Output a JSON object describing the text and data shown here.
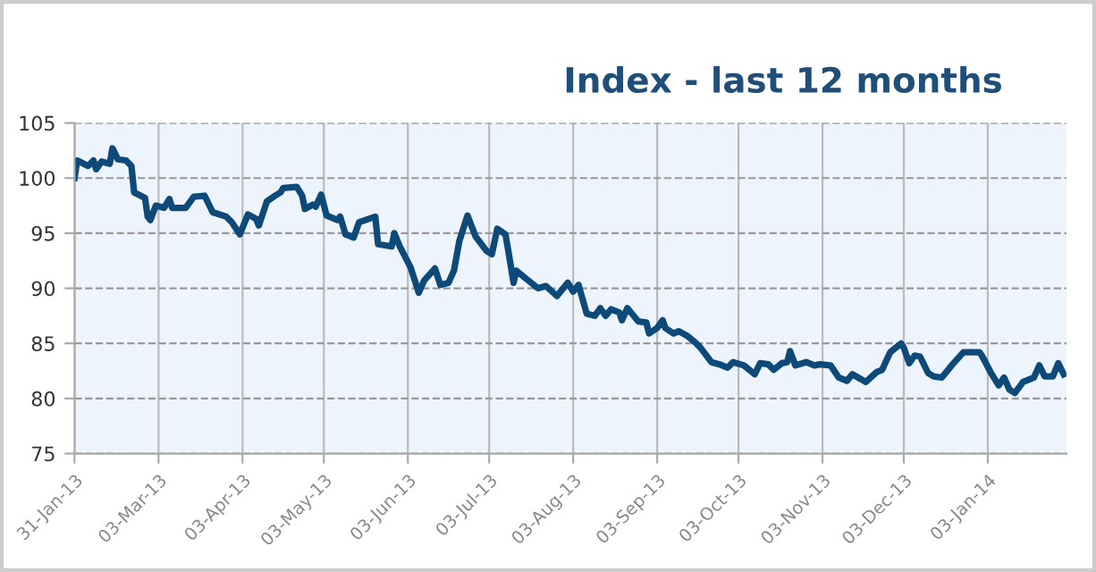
{
  "chart_data": {
    "type": "line",
    "title": "Index - last 12 months",
    "x": [
      "2013-01-31",
      "2013-02-01",
      "2013-02-05",
      "2013-02-07",
      "2013-02-08",
      "2013-02-10",
      "2013-02-13",
      "2013-02-14",
      "2013-02-16",
      "2013-02-19",
      "2013-02-21",
      "2013-02-22",
      "2013-02-26",
      "2013-02-27",
      "2013-02-28",
      "2013-03-02",
      "2013-03-05",
      "2013-03-07",
      "2013-03-08",
      "2013-03-13",
      "2013-03-16",
      "2013-03-20",
      "2013-03-23",
      "2013-03-28",
      "2013-03-30",
      "2013-04-02",
      "2013-04-05",
      "2013-04-08",
      "2013-04-09",
      "2013-04-12",
      "2013-04-15",
      "2013-04-17",
      "2013-04-18",
      "2013-04-23",
      "2013-04-25",
      "2013-04-26",
      "2013-04-29",
      "2013-04-30",
      "2013-05-02",
      "2013-05-04",
      "2013-05-08",
      "2013-05-09",
      "2013-05-11",
      "2013-05-14",
      "2013-05-16",
      "2013-05-22",
      "2013-05-23",
      "2013-05-28",
      "2013-05-29",
      "2013-05-31",
      "2013-06-04",
      "2013-06-07",
      "2013-06-09",
      "2013-06-13",
      "2013-06-15",
      "2013-06-18",
      "2013-06-20",
      "2013-06-22",
      "2013-06-25",
      "2013-06-28",
      "2013-07-02",
      "2013-07-04",
      "2013-07-06",
      "2013-07-09",
      "2013-07-10",
      "2013-07-12",
      "2013-07-13",
      "2013-07-17",
      "2013-07-21",
      "2013-07-24",
      "2013-07-28",
      "2013-08-01",
      "2013-08-03",
      "2013-08-05",
      "2013-08-08",
      "2013-08-11",
      "2013-08-13",
      "2013-08-15",
      "2013-08-17",
      "2013-08-20",
      "2013-08-21",
      "2013-08-23",
      "2013-08-27",
      "2013-08-30",
      "2013-08-31",
      "2013-09-03",
      "2013-09-05",
      "2013-09-06",
      "2013-09-09",
      "2013-09-11",
      "2013-09-14",
      "2013-09-17",
      "2013-09-19",
      "2013-09-23",
      "2013-09-26",
      "2013-09-29",
      "2013-10-01",
      "2013-10-05",
      "2013-10-09",
      "2013-10-11",
      "2013-10-14",
      "2013-10-16",
      "2013-10-19",
      "2013-10-21",
      "2013-10-22",
      "2013-10-24",
      "2013-10-28",
      "2013-10-31",
      "2013-11-02",
      "2013-11-06",
      "2013-11-09",
      "2013-11-12",
      "2013-11-14",
      "2013-11-19",
      "2013-11-23",
      "2013-11-25",
      "2013-11-28",
      "2013-12-02",
      "2013-12-03",
      "2013-12-05",
      "2013-12-07",
      "2013-12-09",
      "2013-12-12",
      "2013-12-14",
      "2013-12-17",
      "2013-12-21",
      "2013-12-25",
      "2013-12-31",
      "2014-01-01",
      "2014-01-04",
      "2014-01-07",
      "2014-01-09",
      "2014-01-11",
      "2014-01-13",
      "2014-01-16",
      "2014-01-20",
      "2014-01-22",
      "2014-01-24",
      "2014-01-27",
      "2014-01-29",
      "2014-01-31"
    ],
    "series": [
      {
        "color": "#0d4a7a",
        "values": [
          100.0,
          101.6,
          101.1,
          101.6,
          100.8,
          101.5,
          101.3,
          102.7,
          101.7,
          101.6,
          101.1,
          98.7,
          98.2,
          96.5,
          96.2,
          97.5,
          97.3,
          98.1,
          97.3,
          97.3,
          98.3,
          98.4,
          96.9,
          96.5,
          96.0,
          94.9,
          96.7,
          96.3,
          95.7,
          97.9,
          98.4,
          98.7,
          99.1,
          99.2,
          98.4,
          97.2,
          97.6,
          97.4,
          98.5,
          96.6,
          96.2,
          96.5,
          94.9,
          94.6,
          96.0,
          96.5,
          94.0,
          93.8,
          95.0,
          93.8,
          91.9,
          89.6,
          90.7,
          91.8,
          90.3,
          90.5,
          91.6,
          94.3,
          96.6,
          94.7,
          93.4,
          93.1,
          95.4,
          94.9,
          93.5,
          90.5,
          91.6,
          90.8,
          90.0,
          90.2,
          89.3,
          90.5,
          89.7,
          90.3,
          87.7,
          87.5,
          88.2,
          87.5,
          88.1,
          87.8,
          87.1,
          88.2,
          87.0,
          86.9,
          85.9,
          86.4,
          87.1,
          86.4,
          85.9,
          86.1,
          85.7,
          85.1,
          84.6,
          83.3,
          83.1,
          82.8,
          83.3,
          83.0,
          82.2,
          83.2,
          83.1,
          82.6,
          83.2,
          83.3,
          84.3,
          83.0,
          83.3,
          83.0,
          83.1,
          83.0,
          81.9,
          81.6,
          82.2,
          81.5,
          82.4,
          82.6,
          84.2,
          85.0,
          84.6,
          83.2,
          83.9,
          83.8,
          82.3,
          82.0,
          81.9,
          83.1,
          84.2,
          84.2,
          83.8,
          82.4,
          81.2,
          81.9,
          80.8,
          80.5,
          81.5,
          81.9,
          83.0,
          82.0,
          82.0,
          83.2,
          82.2
        ]
      }
    ],
    "xlim": [
      "2013-01-31",
      "2014-02-01"
    ],
    "xticks": [
      {
        "value": "2013-01-31",
        "label": "31-Jan-13"
      },
      {
        "value": "2013-03-03",
        "label": "03-Mar-13"
      },
      {
        "value": "2013-04-03",
        "label": "03-Apr-13"
      },
      {
        "value": "2013-05-03",
        "label": "03-May-13"
      },
      {
        "value": "2013-06-03",
        "label": "03-Jun-13"
      },
      {
        "value": "2013-07-03",
        "label": "03-Jul-13"
      },
      {
        "value": "2013-08-03",
        "label": "03-Aug-13"
      },
      {
        "value": "2013-09-03",
        "label": "03-Sep-13"
      },
      {
        "value": "2013-10-03",
        "label": "03-Oct-13"
      },
      {
        "value": "2013-11-03",
        "label": "03-Nov-13"
      },
      {
        "value": "2013-12-03",
        "label": "03-Dec-13"
      },
      {
        "value": "2014-01-03",
        "label": "03-Jan-14"
      }
    ],
    "ylim": [
      75,
      105
    ],
    "yticks": [
      75,
      80,
      85,
      90,
      95,
      100,
      105
    ],
    "grid": true,
    "marker": "none",
    "line_style": "solid"
  }
}
